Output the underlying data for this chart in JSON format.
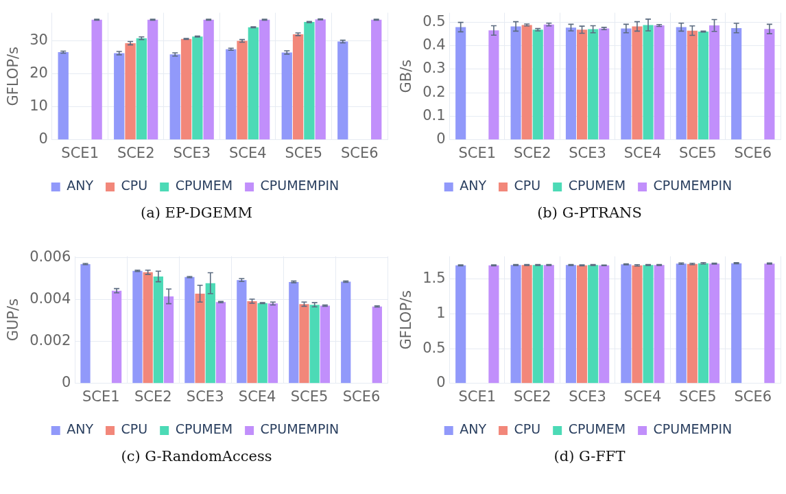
{
  "chart_data": [
    {
      "type": "bar",
      "ylabel": "GFLOP/s",
      "annotations": [
        "(a) EP-DGEMM"
      ],
      "categories": [
        "SCE1",
        "SCE2",
        "SCE3",
        "SCE4",
        "SCE5",
        "SCE6"
      ],
      "ylim": [
        0,
        38.4
      ],
      "yticks": [
        0,
        10,
        20,
        30
      ],
      "grid": true,
      "legend": "bottom",
      "series": [
        {
          "name": "ANY",
          "color": "#9199fa",
          "values": [
            26.5,
            26.2,
            25.8,
            27.4,
            26.4,
            29.7
          ],
          "errors": [
            0.3,
            0.5,
            0.5,
            0.3,
            0.5,
            0.4
          ]
        },
        {
          "name": "CPU",
          "color": "#f2877a",
          "values": [
            null,
            29.2,
            30.5,
            29.9,
            31.9,
            null
          ],
          "errors": [
            null,
            0.5,
            0.15,
            0.4,
            0.4,
            null
          ]
        },
        {
          "name": "CPUMEM",
          "color": "#4cdab6",
          "values": [
            null,
            30.7,
            31.2,
            34.0,
            35.6,
            null
          ],
          "errors": [
            null,
            0.4,
            0.15,
            0.15,
            0.15,
            null
          ]
        },
        {
          "name": "CPUMEMPIN",
          "color": "#c18ffb",
          "values": [
            36.3,
            36.3,
            36.3,
            36.3,
            36.4,
            36.3
          ],
          "errors": [
            0.15,
            0.15,
            0.15,
            0.15,
            0.15,
            0.15
          ]
        }
      ]
    },
    {
      "type": "bar",
      "ylabel": "GB/s",
      "annotations": [
        "(b) G-PTRANS"
      ],
      "categories": [
        "SCE1",
        "SCE2",
        "SCE3",
        "SCE4",
        "SCE5",
        "SCE6"
      ],
      "ylim": [
        0,
        0.54
      ],
      "yticks": [
        0,
        0.1,
        0.2,
        0.3,
        0.4,
        0.5
      ],
      "grid": true,
      "legend": "bottom",
      "series": [
        {
          "name": "ANY",
          "color": "#9199fa",
          "values": [
            0.479,
            0.482,
            0.477,
            0.473,
            0.479,
            0.475
          ],
          "errors": [
            0.02,
            0.02,
            0.014,
            0.018,
            0.017,
            0.02
          ]
        },
        {
          "name": "CPU",
          "color": "#f2877a",
          "values": [
            null,
            0.488,
            0.468,
            0.482,
            0.464,
            null
          ],
          "errors": [
            null,
            0.004,
            0.015,
            0.02,
            0.02,
            null
          ]
        },
        {
          "name": "CPUMEM",
          "color": "#4cdab6",
          "values": [
            null,
            0.468,
            0.47,
            0.488,
            0.46,
            null
          ],
          "errors": [
            null,
            0.005,
            0.015,
            0.025,
            0.002,
            null
          ]
        },
        {
          "name": "CPUMEMPIN",
          "color": "#c18ffb",
          "values": [
            0.465,
            0.49,
            0.473,
            0.486,
            0.486,
            0.471
          ],
          "errors": [
            0.02,
            0.006,
            0.005,
            0.004,
            0.025,
            0.02
          ]
        }
      ]
    },
    {
      "type": "bar",
      "ylabel": "GUP/s",
      "annotations": [
        "(c) G-RandomAccess"
      ],
      "categories": [
        "SCE1",
        "SCE2",
        "SCE3",
        "SCE4",
        "SCE5",
        "SCE6"
      ],
      "ylim": [
        0,
        0.00606
      ],
      "yticks": [
        0,
        0.002,
        0.004,
        0.006
      ],
      "grid": true,
      "legend": "bottom",
      "series": [
        {
          "name": "ANY",
          "color": "#9199fa",
          "values": [
            0.00569,
            0.00537,
            0.00507,
            0.00493,
            0.00484,
            0.00485
          ],
          "errors": [
            3e-05,
            3e-05,
            3e-05,
            7e-05,
            4e-05,
            3e-05
          ]
        },
        {
          "name": "CPU",
          "color": "#f2877a",
          "values": [
            null,
            0.0053,
            0.00428,
            0.00392,
            0.00378,
            null
          ],
          "errors": [
            null,
            0.0001,
            0.0004,
            0.0001,
            0.0001,
            null
          ]
        },
        {
          "name": "CPUMEM",
          "color": "#4cdab6",
          "values": [
            null,
            0.0051,
            0.00478,
            0.00383,
            0.00375,
            null
          ],
          "errors": [
            null,
            0.00025,
            0.0005,
            2e-05,
            0.0001,
            null
          ]
        },
        {
          "name": "CPUMEMPIN",
          "color": "#c18ffb",
          "values": [
            0.00442,
            0.00415,
            0.00388,
            0.00381,
            0.00371,
            0.00367
          ],
          "errors": [
            0.0001,
            0.00035,
            3e-05,
            7e-05,
            3e-05,
            3e-05
          ]
        }
      ]
    },
    {
      "type": "bar",
      "ylabel": "GFLOP/s",
      "annotations": [
        "(d) G-FFT"
      ],
      "categories": [
        "SCE1",
        "SCE2",
        "SCE3",
        "SCE4",
        "SCE5",
        "SCE6"
      ],
      "ylim": [
        0,
        1.83
      ],
      "yticks": [
        0,
        0.5,
        1,
        1.5
      ],
      "grid": true,
      "legend": "bottom",
      "series": [
        {
          "name": "ANY",
          "color": "#9199fa",
          "values": [
            1.7,
            1.705,
            1.705,
            1.715,
            1.725,
            1.73
          ],
          "errors": [
            0.006,
            0.008,
            0.008,
            0.008,
            0.01,
            0.008
          ]
        },
        {
          "name": "CPU",
          "color": "#f2877a",
          "values": [
            null,
            1.705,
            1.7,
            1.7,
            1.72,
            null
          ],
          "errors": [
            null,
            0.006,
            0.006,
            0.01,
            0.01,
            null
          ]
        },
        {
          "name": "CPUMEM",
          "color": "#4cdab6",
          "values": [
            null,
            1.705,
            1.705,
            1.705,
            1.73,
            null
          ],
          "errors": [
            null,
            0.008,
            0.006,
            0.006,
            0.01,
            null
          ]
        },
        {
          "name": "CPUMEMPIN",
          "color": "#c18ffb",
          "values": [
            1.7,
            1.705,
            1.7,
            1.705,
            1.725,
            1.725
          ],
          "errors": [
            0.006,
            0.006,
            0.004,
            0.006,
            0.006,
            0.008
          ]
        }
      ]
    }
  ]
}
